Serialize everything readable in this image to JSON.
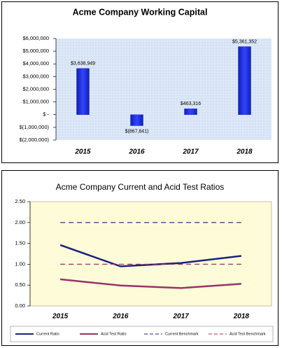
{
  "chart_data": [
    {
      "type": "bar",
      "title": "Acme Company Working Capital",
      "categories": [
        "2015",
        "2016",
        "2017",
        "2018"
      ],
      "values": [
        3638949,
        -867841,
        463316,
        5361352
      ],
      "value_labels": [
        "$3,638,949",
        "$(867,841)",
        "$463,316",
        "$5,361,352"
      ],
      "color": "#1f2fd8",
      "ylim": [
        -2000000,
        6000000
      ],
      "yticks": [
        {
          "value": -2000000,
          "label": "$(2,000,000)"
        },
        {
          "value": -1000000,
          "label": "$(1,000,000)"
        },
        {
          "value": 0,
          "label": "$ -"
        },
        {
          "value": 1000000,
          "label": "$1,000,000"
        },
        {
          "value": 2000000,
          "label": "$2,000,000"
        },
        {
          "value": 3000000,
          "label": "$3,000,000"
        },
        {
          "value": 4000000,
          "label": "$4,000,000"
        },
        {
          "value": 5000000,
          "label": "$5,000,000"
        },
        {
          "value": 6000000,
          "label": "$6,000,000"
        }
      ]
    },
    {
      "type": "line",
      "title": "Acme Company Current and Acid Test Ratios",
      "categories": [
        "2015",
        "2016",
        "2017",
        "2018"
      ],
      "series": [
        {
          "name": "Current Ratio",
          "color": "#1a237e",
          "values": [
            1.46,
            0.95,
            1.03,
            1.2
          ]
        },
        {
          "name": "Acid Test Ratio",
          "color": "#993366",
          "values": [
            0.64,
            0.49,
            0.43,
            0.53
          ]
        },
        {
          "name": "Current Benchmark",
          "color": "#1a237e",
          "dash": true,
          "values": [
            2,
            2,
            2,
            2
          ]
        },
        {
          "name": "Acid Test Benchmark",
          "color": "#993366",
          "dash": true,
          "values": [
            1,
            1,
            1,
            1
          ]
        }
      ],
      "ylim": [
        0,
        2.5
      ],
      "yticks": [
        {
          "value": 0,
          "label": "0.00"
        },
        {
          "value": 0.5,
          "label": "0.50"
        },
        {
          "value": 1,
          "label": "1.00"
        },
        {
          "value": 1.5,
          "label": "1.50"
        },
        {
          "value": 2,
          "label": "2.00"
        },
        {
          "value": 2.5,
          "label": "2.50"
        }
      ],
      "legend": "bottom"
    }
  ]
}
